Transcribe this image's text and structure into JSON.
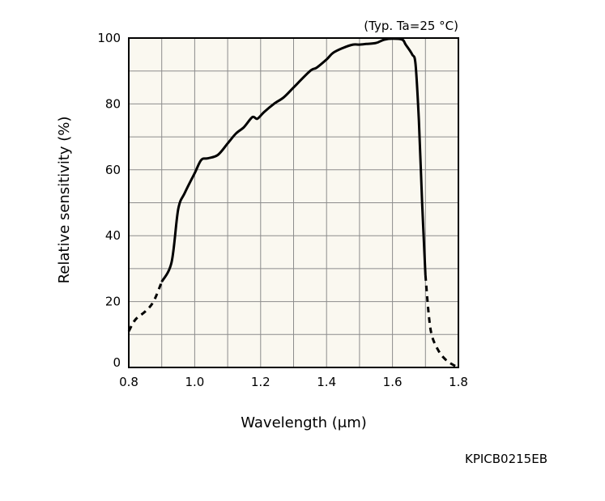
{
  "chart_data": {
    "type": "line",
    "title": "",
    "condition_note": "(Typ. Ta=25 °C)",
    "xlabel": "Wavelength (μm)",
    "ylabel": "Relative sensitivity (%)",
    "xlim": [
      0.8,
      1.8
    ],
    "ylim": [
      0,
      100
    ],
    "x_ticks": [
      "0.8",
      "1.0",
      "1.2",
      "1.4",
      "1.6",
      "1.8"
    ],
    "y_ticks": [
      "0",
      "20",
      "40",
      "60",
      "80",
      "100"
    ],
    "grid": true,
    "series": [
      {
        "line_style": "dashed",
        "x": [
          0.8,
          0.82,
          0.85,
          0.875,
          0.9
        ],
        "y": [
          11,
          14.5,
          17,
          20,
          26
        ]
      },
      {
        "line_style": "solid",
        "x": [
          0.9,
          0.93,
          0.95,
          0.97,
          1.0,
          1.02,
          1.04,
          1.07,
          1.1,
          1.125,
          1.15,
          1.175,
          1.19,
          1.21,
          1.24,
          1.27,
          1.3,
          1.35,
          1.37,
          1.4,
          1.42,
          1.45,
          1.48,
          1.5,
          1.52,
          1.55,
          1.575,
          1.6,
          1.63,
          1.64,
          1.66,
          1.67,
          1.68,
          1.69,
          1.7
        ],
        "y": [
          26,
          32,
          48,
          53,
          59,
          63,
          63.5,
          64.5,
          68,
          71,
          73,
          76,
          75.5,
          77.5,
          80,
          82,
          85,
          90,
          91,
          93.5,
          95.5,
          97,
          98,
          98,
          98.2,
          98.5,
          99.5,
          99.8,
          99.5,
          98,
          95,
          92,
          75,
          50,
          28
        ]
      },
      {
        "line_style": "dashed",
        "x": [
          1.7,
          1.71,
          1.72,
          1.74,
          1.76,
          1.78,
          1.8
        ],
        "y": [
          28,
          16,
          9.5,
          5,
          2.5,
          1,
          0
        ]
      }
    ]
  },
  "figure_code": "KPICB0215EB"
}
